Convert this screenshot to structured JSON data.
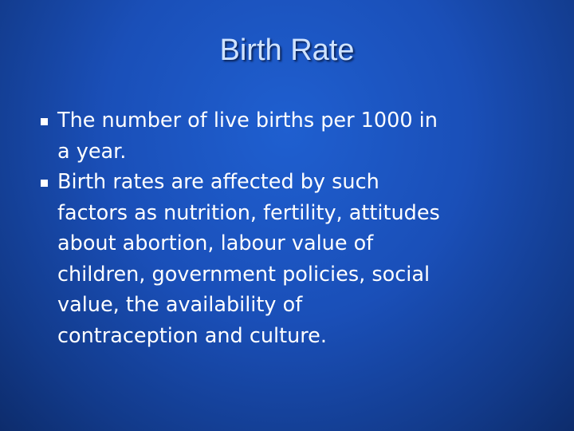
{
  "slide": {
    "title": "Birth Rate",
    "bullets": [
      {
        "lines": [
          "The number of live births per 1000 in",
          "a year."
        ]
      },
      {
        "lines": [
          "Birth rates are affected by such",
          "factors as nutrition, fertility, attitudes",
          "about abortion, labour value of",
          "children, government policies, social",
          "value, the availability of",
          "contraception and culture."
        ]
      }
    ]
  }
}
